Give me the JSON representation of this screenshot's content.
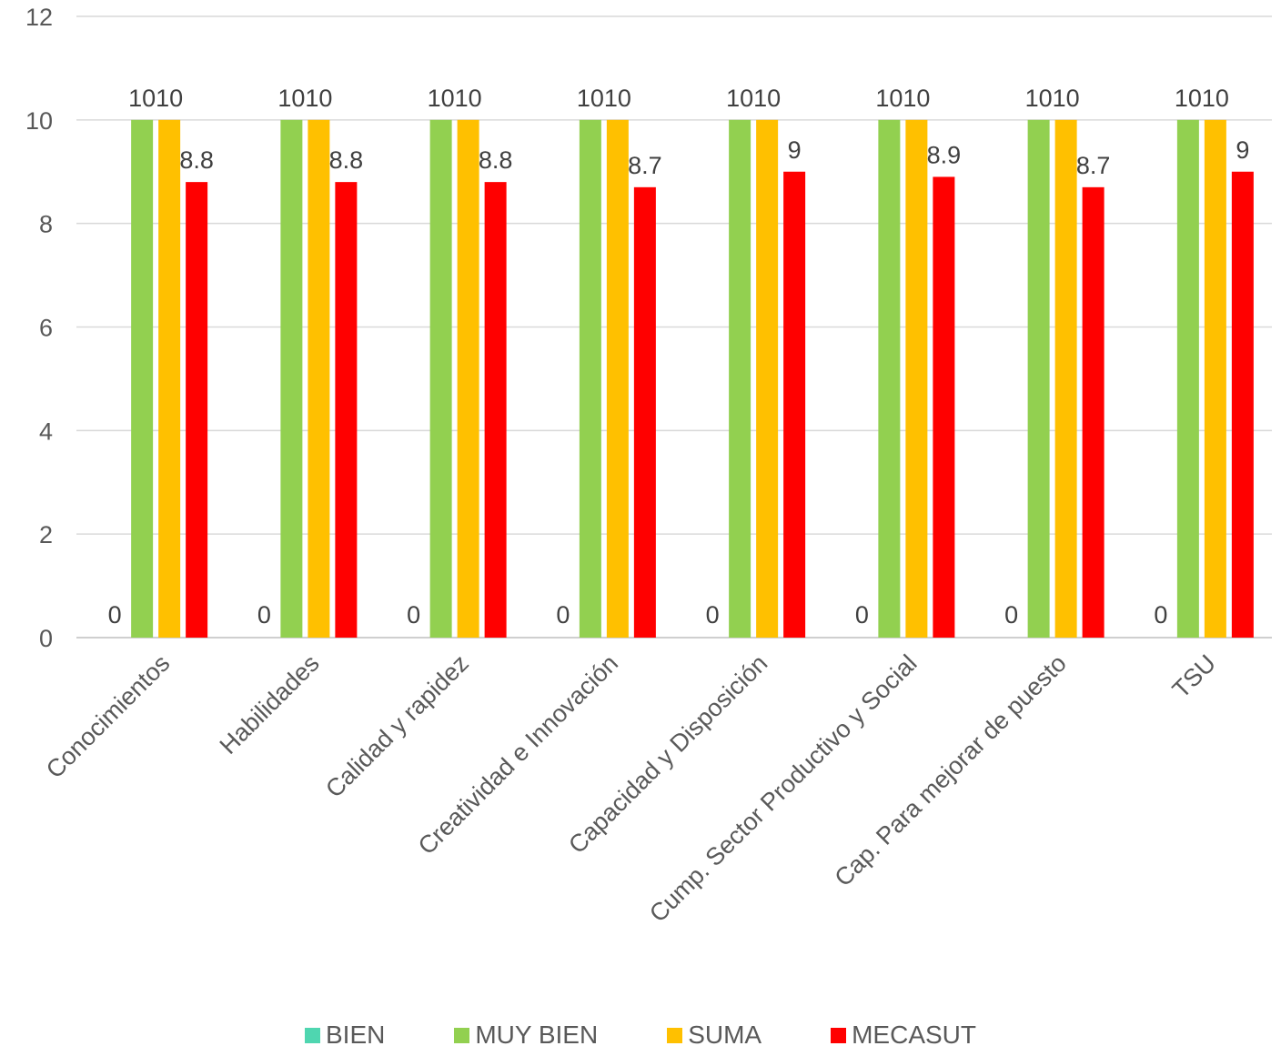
{
  "chart_data": {
    "type": "bar",
    "categories": [
      "Conocimientos",
      "Habilidades",
      "Calidad y rapidez",
      "Creatividad e Innovación",
      "Capacidad y Disposición",
      "Cump. Sector Productivo y Social",
      "Cap. Para mejorar de puesto",
      "TSU"
    ],
    "series": [
      {
        "name": "BIEN",
        "color": "#4fd6b0",
        "values": [
          0,
          0,
          0,
          0,
          0,
          0,
          0,
          0
        ]
      },
      {
        "name": "MUY BIEN",
        "color": "#92d050",
        "values": [
          10,
          10,
          10,
          10,
          10,
          10,
          10,
          10
        ]
      },
      {
        "name": "SUMA",
        "color": "#ffc000",
        "values": [
          10,
          10,
          10,
          10,
          10,
          10,
          10,
          10
        ]
      },
      {
        "name": "MECASUT",
        "color": "#ff0000",
        "values": [
          8.8,
          8.8,
          8.8,
          8.7,
          9,
          8.9,
          8.7,
          9
        ]
      }
    ],
    "ylim": [
      0,
      12
    ],
    "yticks": [
      0,
      2,
      4,
      6,
      8,
      10,
      12
    ],
    "grid": true,
    "legend_position": "bottom"
  }
}
